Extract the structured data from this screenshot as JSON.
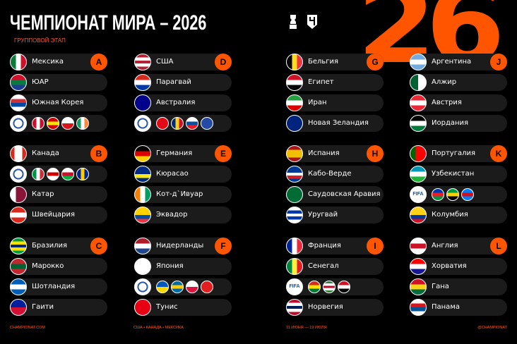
{
  "header": {
    "title": "ЧЕМПИОНАТ МИРА – 2026",
    "subtitle": "ГРУППОВОЙ ЭТАП",
    "hero_number": "26"
  },
  "colors": {
    "accent": "#ff5500",
    "row_bg": "#1b1b1b",
    "background": "#000000"
  },
  "columns": [
    [
      {
        "letter": "A",
        "teams": [
          {
            "name": "Мексика",
            "flag": {
              "dir": "v",
              "colors": [
                "#0b7a3b",
                "#ffffff",
                "#d0102b"
              ]
            }
          },
          {
            "name": "ЮАР",
            "flag": {
              "dir": "h",
              "colors": [
                "#d0102b",
                "#0a7a3e",
                "#1c3f94"
              ]
            }
          },
          {
            "name": "Южная Корея",
            "flag": {
              "dir": "h",
              "colors": [
                "#ffffff",
                "#cd2e3a",
                "#0047a0",
                "#ffffff"
              ]
            }
          },
          {
            "playoff": "UEFA",
            "flags": [
              {
                "dir": "v",
                "colors": [
                  "#c8102e",
                  "#ffffff",
                  "#c8102e"
                ]
              },
              {
                "dir": "h",
                "colors": [
                  "#d20000",
                  "#ffe600",
                  "#d20000"
                ]
              },
              {
                "dir": "h",
                "colors": [
                  "#ffffff",
                  "#d7141a"
                ]
              },
              {
                "dir": "v",
                "colors": [
                  "#169b62",
                  "#ffffff",
                  "#ff883e"
                ]
              }
            ]
          }
        ]
      },
      {
        "letter": "B",
        "teams": [
          {
            "name": "Канада",
            "flag": {
              "dir": "v",
              "colors": [
                "#d52b1e",
                "#ffffff",
                "#ffffff",
                "#d52b1e"
              ]
            }
          },
          {
            "playoff": "UEFA",
            "flags": [
              {
                "dir": "v",
                "colors": [
                  "#009246",
                  "#ffffff",
                  "#ce2b37"
                ]
              },
              {
                "dir": "h",
                "colors": [
                  "#ffffff",
                  "#cc0000",
                  "#ffffff"
                ]
              },
              {
                "dir": "h",
                "colors": [
                  "#ffffff",
                  "#c8102e",
                  "#00b140"
                ]
              },
              {
                "dir": "v",
                "colors": [
                  "#002395",
                  "#fecb00",
                  "#002395"
                ]
              }
            ]
          },
          {
            "name": "Катар",
            "flag": {
              "dir": "v",
              "colors": [
                "#ffffff",
                "#8a1538",
                "#8a1538"
              ]
            }
          },
          {
            "name": "Швейцария",
            "flag": {
              "dir": "h",
              "colors": [
                "#da291c",
                "#ffffff",
                "#da291c"
              ]
            }
          }
        ]
      },
      {
        "letter": "C",
        "teams": [
          {
            "name": "Бразилия",
            "flag": {
              "dir": "h",
              "colors": [
                "#009c3b",
                "#ffdf00",
                "#002776",
                "#ffdf00",
                "#009c3b"
              ]
            }
          },
          {
            "name": "Марокко",
            "flag": {
              "dir": "h",
              "colors": [
                "#c1272d",
                "#006233",
                "#c1272d"
              ]
            }
          },
          {
            "name": "Шотландия",
            "flag": {
              "dir": "h",
              "colors": [
                "#005eb8",
                "#ffffff",
                "#005eb8"
              ]
            }
          },
          {
            "name": "Гаити",
            "flag": {
              "dir": "h",
              "colors": [
                "#00209f",
                "#d21034"
              ]
            }
          }
        ]
      }
    ],
    [
      {
        "letter": "D",
        "teams": [
          {
            "name": "США",
            "flag": {
              "dir": "h",
              "colors": [
                "#b22234",
                "#ffffff",
                "#b22234",
                "#ffffff",
                "#b22234"
              ]
            }
          },
          {
            "name": "Парагвай",
            "flag": {
              "dir": "h",
              "colors": [
                "#d52b1e",
                "#ffffff",
                "#0038a8"
              ]
            }
          },
          {
            "name": "Австралия",
            "flag": {
              "dir": "h",
              "colors": [
                "#00008b",
                "#00008b"
              ]
            }
          },
          {
            "playoff": "UEFA",
            "flags": [
              {
                "dir": "h",
                "colors": [
                  "#e30a17",
                  "#e30a17"
                ]
              },
              {
                "dir": "v",
                "colors": [
                  "#002b7f",
                  "#fcd116",
                  "#ce1126"
                ]
              },
              {
                "dir": "h",
                "colors": [
                  "#ffffff",
                  "#0b4ea2",
                  "#ee1c25"
                ]
              },
              {
                "dir": "h",
                "colors": [
                  "#244aa5",
                  "#244aa5"
                ]
              }
            ]
          }
        ]
      },
      {
        "letter": "E",
        "teams": [
          {
            "name": "Германия",
            "flag": {
              "dir": "h",
              "colors": [
                "#000000",
                "#dd0000",
                "#ffce00"
              ]
            }
          },
          {
            "name": "Кюрасао",
            "flag": {
              "dir": "h",
              "colors": [
                "#002b7f",
                "#002b7f",
                "#f9e814",
                "#002b7f"
              ]
            }
          },
          {
            "name": "Кот-д`Ивуар",
            "flag": {
              "dir": "v",
              "colors": [
                "#f77f00",
                "#ffffff",
                "#009e60"
              ]
            }
          },
          {
            "name": "Эквадор",
            "flag": {
              "dir": "h",
              "colors": [
                "#ffd100",
                "#ffd100",
                "#034ea2",
                "#ef3340"
              ]
            }
          }
        ]
      },
      {
        "letter": "F",
        "teams": [
          {
            "name": "Нидерланды",
            "flag": {
              "dir": "h",
              "colors": [
                "#ae1c28",
                "#ffffff",
                "#21468b"
              ]
            }
          },
          {
            "name": "Япония",
            "flag": {
              "dir": "h",
              "colors": [
                "#ffffff",
                "#ffffff"
              ]
            }
          },
          {
            "playoff": "UEFA",
            "flags": [
              {
                "dir": "h",
                "colors": [
                  "#0057b7",
                  "#ffd700"
                ]
              },
              {
                "dir": "h",
                "colors": [
                  "#006aa7",
                  "#fecc00",
                  "#006aa7"
                ]
              },
              {
                "dir": "h",
                "colors": [
                  "#ffffff",
                  "#dc143c"
                ]
              },
              {
                "dir": "h",
                "colors": [
                  "#e41e20",
                  "#e41e20"
                ]
              }
            ]
          },
          {
            "name": "Тунис",
            "flag": {
              "dir": "h",
              "colors": [
                "#e70013",
                "#e70013"
              ]
            }
          }
        ]
      }
    ],
    [
      {
        "letter": "G",
        "teams": [
          {
            "name": "Бельгия",
            "flag": {
              "dir": "v",
              "colors": [
                "#000000",
                "#fdda24",
                "#ef3340"
              ]
            }
          },
          {
            "name": "Египет",
            "flag": {
              "dir": "h",
              "colors": [
                "#ce1126",
                "#ffffff",
                "#000000"
              ]
            }
          },
          {
            "name": "Иран",
            "flag": {
              "dir": "h",
              "colors": [
                "#239f40",
                "#ffffff",
                "#da0000"
              ]
            }
          },
          {
            "name": "Новая Зеландия",
            "flag": {
              "dir": "h",
              "colors": [
                "#00247d",
                "#00247d"
              ]
            }
          }
        ]
      },
      {
        "letter": "H",
        "teams": [
          {
            "name": "Испания",
            "flag": {
              "dir": "h",
              "colors": [
                "#aa151b",
                "#f1bf00",
                "#f1bf00",
                "#aa151b"
              ]
            }
          },
          {
            "name": "Кабо-Верде",
            "flag": {
              "dir": "h",
              "colors": [
                "#003893",
                "#003893",
                "#ffffff",
                "#cf2027",
                "#003893"
              ]
            }
          },
          {
            "name": "Саудовская Аравия",
            "flag": {
              "dir": "h",
              "colors": [
                "#006c35",
                "#006c35"
              ]
            }
          },
          {
            "name": "Уругвай",
            "flag": {
              "dir": "h",
              "colors": [
                "#ffffff",
                "#0038a8",
                "#ffffff",
                "#0038a8",
                "#ffffff"
              ]
            }
          }
        ]
      },
      {
        "letter": "I",
        "teams": [
          {
            "name": "Франция",
            "flag": {
              "dir": "v",
              "colors": [
                "#002395",
                "#ffffff",
                "#ed2939"
              ]
            }
          },
          {
            "name": "Сенегал",
            "flag": {
              "dir": "v",
              "colors": [
                "#00853f",
                "#fdef42",
                "#e31b23"
              ]
            }
          },
          {
            "playoff": "FIFA",
            "flags": [
              {
                "dir": "h",
                "colors": [
                  "#d52b1e",
                  "#f9e300",
                  "#007934"
                ]
              },
              {
                "dir": "h",
                "colors": [
                  "#377e3f",
                  "#ffffff",
                  "#b40a2d",
                  "#ffffff",
                  "#377e3f"
                ]
              },
              {
                "dir": "h",
                "colors": [
                  "#ce1126",
                  "#ffffff",
                  "#000000"
                ]
              }
            ]
          },
          {
            "name": "Норвегия",
            "flag": {
              "dir": "h",
              "colors": [
                "#ba0c2f",
                "#ffffff",
                "#00205b",
                "#ffffff",
                "#ba0c2f"
              ]
            }
          }
        ]
      }
    ],
    [
      {
        "letter": "J",
        "teams": [
          {
            "name": "Аргентина",
            "flag": {
              "dir": "h",
              "colors": [
                "#74acdf",
                "#ffffff",
                "#74acdf"
              ]
            }
          },
          {
            "name": "Алжир",
            "flag": {
              "dir": "v",
              "colors": [
                "#006233",
                "#ffffff"
              ]
            }
          },
          {
            "name": "Австрия",
            "flag": {
              "dir": "h",
              "colors": [
                "#ed2939",
                "#ffffff",
                "#ed2939"
              ]
            }
          },
          {
            "name": "Иордания",
            "flag": {
              "dir": "h",
              "colors": [
                "#000000",
                "#ffffff",
                "#007a3d"
              ]
            }
          }
        ]
      },
      {
        "letter": "K",
        "teams": [
          {
            "name": "Португалия",
            "flag": {
              "dir": "v",
              "colors": [
                "#006600",
                "#ff0000",
                "#ff0000"
              ]
            }
          },
          {
            "name": "Узбекистан",
            "flag": {
              "dir": "h",
              "colors": [
                "#0099b5",
                "#ffffff",
                "#1eb53a"
              ]
            }
          },
          {
            "playoff": "FIFA",
            "flags": [
              {
                "dir": "h",
                "colors": [
                  "#0035ad",
                  "#ed1c24",
                  "#009543"
                ]
              },
              {
                "dir": "h",
                "colors": [
                  "#009b3a",
                  "#fed100",
                  "#000000"
                ]
              },
              {
                "dir": "h",
                "colors": [
                  "#007fff",
                  "#ce1021",
                  "#007fff"
                ]
              }
            ]
          },
          {
            "name": "Колумбия",
            "flag": {
              "dir": "h",
              "colors": [
                "#fcd116",
                "#fcd116",
                "#003893",
                "#ce1126"
              ]
            }
          }
        ]
      },
      {
        "letter": "L",
        "teams": [
          {
            "name": "Англия",
            "flag": {
              "dir": "h",
              "colors": [
                "#ffffff",
                "#ce1124",
                "#ffffff"
              ]
            }
          },
          {
            "name": "Хорватия",
            "flag": {
              "dir": "h",
              "colors": [
                "#ff0000",
                "#ffffff",
                "#171796"
              ]
            }
          },
          {
            "name": "Гана",
            "flag": {
              "dir": "h",
              "colors": [
                "#ce1126",
                "#fcd116",
                "#006b3f"
              ]
            }
          },
          {
            "name": "Панама",
            "flag": {
              "dir": "h",
              "colors": [
                "#ffffff",
                "#da121a",
                "#005293",
                "#ffffff"
              ]
            }
          }
        ]
      }
    ]
  ],
  "footer": {
    "site": "CHAMPIONAT.COM",
    "hosts": "США • КАНАДА • МЕКСИКА",
    "dates": "11 ИЮНЯ — 19 ИЮЛЯ",
    "handle": "@CHAMPIONAT"
  }
}
